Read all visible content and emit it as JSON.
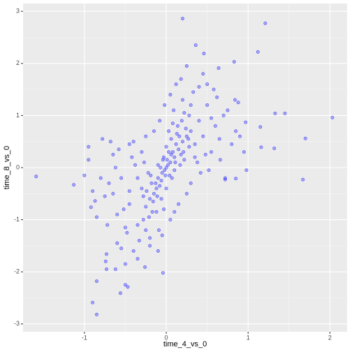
{
  "chart_data": {
    "type": "scatter",
    "x_label": "time_4_vs_0",
    "y_label": "time_8_vs_0",
    "color": "#0000ff",
    "grid": true,
    "xlim": [
      -1.75,
      2.21
    ],
    "ylim": [
      -3.15,
      3.15
    ],
    "xticks": [
      -1,
      0,
      1,
      2
    ],
    "yticks": [
      -3,
      -2,
      -1,
      0,
      1,
      2,
      3
    ],
    "x": [
      0.2,
      1.21,
      0.36,
      1.12,
      0.46,
      -1.59,
      -1.13,
      2.03,
      1.7,
      1.67,
      1.45,
      1.33,
      1.15,
      1.16,
      1.32,
      -0.9,
      -0.85,
      -0.85,
      -0.56,
      -0.47,
      -0.5,
      -0.95,
      -0.92,
      -0.87,
      -0.73,
      -0.74,
      0.83,
      0.64,
      0.84,
      0.97,
      0.85,
      0.72,
      -0.04,
      -0.26,
      -0.73,
      -0.62,
      0.02,
      -0.05,
      0.1,
      0.15,
      -0.1,
      0.0,
      0.05,
      -0.02,
      0.08,
      -0.08,
      0.2,
      -0.15,
      0.12,
      -0.12,
      0.25,
      -0.2,
      0.3,
      -0.25,
      0.18,
      -0.18,
      0.04,
      -0.04,
      0.1,
      -0.1,
      0.22,
      -0.22,
      0.35,
      -0.3,
      0.06,
      -0.06,
      0.14,
      -0.12,
      0.28,
      -0.28,
      0.4,
      -0.35,
      0.45,
      -0.45,
      0.5,
      -0.5,
      0.0,
      0.0,
      0.03,
      -0.03,
      0.09,
      -0.09,
      0.2,
      -0.2,
      0.33,
      -0.33,
      0.55,
      -0.55,
      0.6,
      -0.6,
      0.38,
      -0.38,
      0.42,
      -0.42,
      0.65,
      -0.65,
      0.7,
      -0.7,
      0.5,
      -0.4,
      0.3,
      -0.3,
      0.25,
      -0.25,
      0.15,
      -0.15,
      0.58,
      0.45,
      0.62,
      0.75,
      0.8,
      0.85,
      0.48,
      0.52,
      0.66,
      0.9,
      -0.58,
      -0.62,
      -0.75,
      -0.8,
      -0.68,
      -0.72,
      -0.48,
      -0.52,
      -0.85,
      -0.6,
      -0.4,
      -0.35,
      -0.55,
      -0.5,
      -0.2,
      -0.1,
      -0.05,
      -0.25,
      0.05,
      0.1,
      0.12,
      0.05,
      0.18,
      0.25,
      0.4,
      0.3,
      0.22,
      0.08,
      -0.02,
      -0.08,
      0.55,
      0.35,
      0.28,
      0.16,
      0.06,
      -0.06,
      -0.16,
      -0.28,
      -0.35,
      -0.45,
      0.01,
      -0.01,
      0.03,
      -0.03,
      0.07,
      -0.07,
      0.11,
      -0.11,
      0.13,
      -0.13,
      0.17,
      -0.17,
      0.19,
      -0.19,
      0.21,
      -0.21,
      0.24,
      -0.24,
      0.27,
      -0.27,
      -0.9,
      -0.95,
      -1.0,
      -0.78,
      -0.65,
      -0.45,
      0.95,
      0.98,
      0.72,
      0.88
    ],
    "values": [
      2.86,
      2.77,
      2.35,
      2.22,
      2.19,
      -0.17,
      -0.33,
      0.96,
      0.56,
      -0.23,
      1.04,
      1.04,
      0.78,
      0.39,
      0.37,
      -2.59,
      -2.82,
      -2.18,
      -2.41,
      -2.29,
      -2.25,
      0.15,
      -0.76,
      -0.64,
      -1.66,
      -1.8,
      2.03,
      1.91,
      1.3,
      0.87,
      -0.21,
      -0.23,
      -2.02,
      -1.91,
      -1.95,
      -1.95,
      0.05,
      -0.1,
      0.2,
      0.35,
      -0.2,
      0.0,
      0.1,
      -0.05,
      0.3,
      -0.35,
      0.5,
      -0.5,
      0.45,
      -0.4,
      0.6,
      -0.6,
      0.7,
      -0.75,
      0.25,
      -0.3,
      -0.15,
      0.15,
      -0.05,
      0.05,
      0.15,
      -0.1,
      0.45,
      -0.4,
      0.55,
      -0.6,
      0.8,
      -0.85,
      1.0,
      -1.0,
      0.9,
      -1.1,
      0.6,
      -0.7,
      1.2,
      -1.15,
      0.4,
      -0.4,
      0.7,
      -0.8,
      1.1,
      -1.2,
      1.3,
      -1.35,
      1.45,
      -1.4,
      0.3,
      -0.2,
      0.8,
      -0.9,
      0.1,
      0.05,
      -0.1,
      0.2,
      0.55,
      -0.5,
      1.0,
      -0.3,
      1.6,
      0.5,
      -0.3,
      0.3,
      -0.5,
      0.6,
      -0.7,
      0.7,
      1.5,
      1.8,
      1.35,
      1.1,
      0.45,
      0.7,
      0.25,
      -0.05,
      0.15,
      0.6,
      0.35,
      0.0,
      -0.55,
      -0.2,
      0.5,
      -1.1,
      -1.25,
      -0.8,
      -0.95,
      -1.45,
      -1.6,
      -1.75,
      -1.55,
      -1.85,
      -1.5,
      -1.6,
      -1.3,
      -1.2,
      -1.0,
      -0.85,
      1.6,
      1.4,
      1.7,
      1.95,
      1.55,
      1.2,
      1.05,
      0.85,
      1.2,
      0.9,
      0.95,
      0.2,
      0.4,
      0.6,
      0.25,
      -0.25,
      -0.65,
      -0.55,
      -0.2,
      -0.45,
      0.15,
      -0.15,
      0.3,
      0.2,
      -0.2,
      0.0,
      0.1,
      -0.55,
      0.65,
      -0.3,
      0.05,
      -0.85,
      0.9,
      -0.15,
      0.3,
      -0.95,
      0.75,
      -0.45,
      0.55,
      0.1,
      -0.45,
      0.4,
      -0.15,
      0.55,
      0.25,
      0.45,
      0.3,
      -0.05,
      -0.2,
      1.25
    ]
  }
}
